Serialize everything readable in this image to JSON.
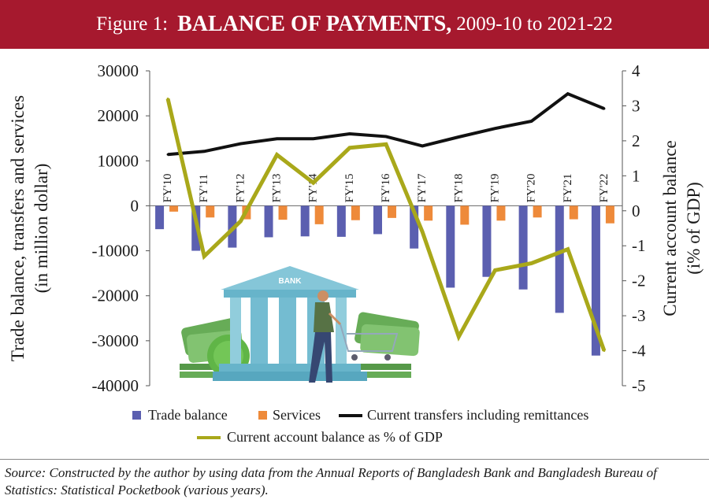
{
  "figure": {
    "label": "Figure 1:",
    "title": "BALANCE OF PAYMENTS,",
    "period": "2009-10 to 2021-22"
  },
  "source": "Source: Constructed by the author by using data from the Annual Reports of Bangladesh Bank and Bangladesh Bureau of Statistics: Statistical Pocketbook (various years).",
  "illustration": {
    "bank_sign": "BANK"
  },
  "colors": {
    "title_bg": "#a6192e",
    "trade": "#5b5fb0",
    "services": "#ee8a3a",
    "transfers": "#111111",
    "ca_pct": "#a9a81a"
  },
  "chart_data": {
    "type": "bar",
    "categories": [
      "FY'10",
      "FY'11",
      "FY'12",
      "FY'13",
      "FY'14",
      "FY'15",
      "FY'16",
      "FY'17",
      "FY'18",
      "FY'19",
      "FY'20",
      "FY'21",
      "FY'22"
    ],
    "series": [
      {
        "name": "Trade balance",
        "kind": "bar",
        "axis": "left",
        "values": [
          -5200,
          -10000,
          -9300,
          -7000,
          -6800,
          -6900,
          -6300,
          -9500,
          -18200,
          -15800,
          -18600,
          -23800,
          -33300
        ]
      },
      {
        "name": "Services",
        "kind": "bar",
        "axis": "left",
        "values": [
          -1300,
          -2600,
          -3000,
          -3100,
          -4100,
          -3200,
          -2700,
          -3300,
          -4200,
          -3300,
          -2600,
          -3000,
          -3900
        ]
      },
      {
        "name": "Current transfers including remittances",
        "kind": "line",
        "axis": "left",
        "values": [
          11400,
          12100,
          13800,
          14900,
          14900,
          16000,
          15400,
          13300,
          15300,
          17200,
          18800,
          24900,
          21600
        ]
      },
      {
        "name": "Current account balance as % of GDP",
        "kind": "line",
        "axis": "right",
        "values": [
          3.2,
          -1.3,
          -0.3,
          1.6,
          0.8,
          1.8,
          1.9,
          -0.6,
          -3.6,
          -1.7,
          -1.5,
          -1.1,
          -4.0
        ]
      }
    ],
    "ylabel": "Trade balance, transfers and services (in million dollar)",
    "y2label": "Current account balance (i% of GDP)",
    "ylim": [
      -40000,
      30000
    ],
    "yticks": [
      "30000",
      "20000",
      "10000",
      "0",
      "-10000",
      "-20000",
      "-30000",
      "-40000"
    ],
    "y2lim": [
      -5,
      4
    ],
    "y2ticks": [
      "4",
      "3",
      "2",
      "1",
      "0",
      "-1",
      "-2",
      "-3",
      "-4",
      "-5"
    ],
    "legend": {
      "placement": "bottom",
      "items": [
        "Trade balance",
        "Services",
        "Current transfers including remittances",
        "Current account balance as % of GDP"
      ]
    }
  }
}
